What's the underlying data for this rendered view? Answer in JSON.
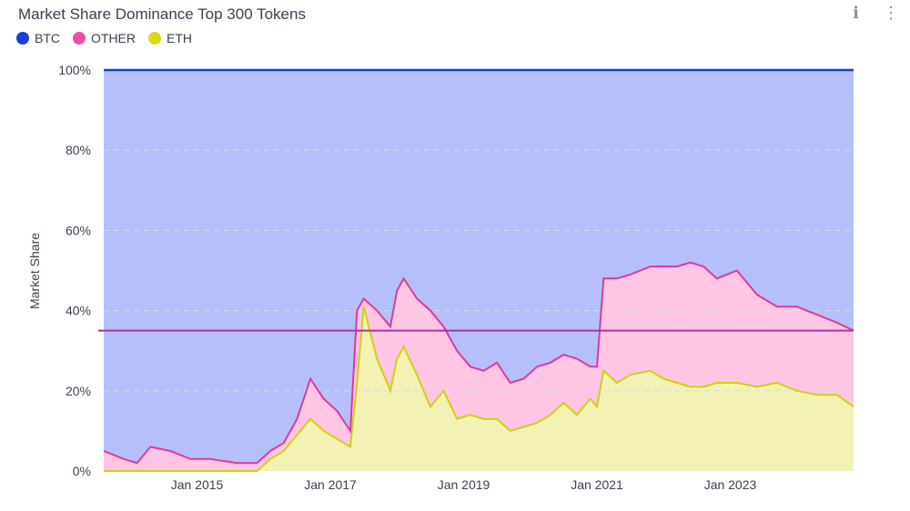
{
  "header": {
    "title": "Market Share Dominance Top 300 Tokens",
    "info_icon": "info-icon",
    "menu_icon": "vertical-dots-icon"
  },
  "legend": [
    {
      "label": "BTC",
      "color": "#1b3ed6"
    },
    {
      "label": "OTHER",
      "color": "#f04ea5"
    },
    {
      "label": "ETH",
      "color": "#d9d81a"
    }
  ],
  "colors": {
    "btc_area": "#b5c0fb",
    "btc_line": "#1b3ed6",
    "other_area": "#ffc5e2",
    "other_line": "#e0379d",
    "eth_area": "#f3f1b3",
    "eth_line": "#cfcf12",
    "ref_line": "#b0329b",
    "grid": "#d7dce8"
  },
  "chart_data": {
    "type": "area",
    "stacked": true,
    "title": "Market Share Dominance Top 300 Tokens",
    "ylabel": "Market Share",
    "xlabel": "",
    "ylim": [
      0,
      100
    ],
    "xlim": [
      2013.6,
      2024.85
    ],
    "yticks": [
      0,
      20,
      40,
      60,
      80,
      100
    ],
    "ytick_labels": [
      "0%",
      "20%",
      "40%",
      "60%",
      "80%",
      "100%"
    ],
    "xticks": [
      2015,
      2017,
      2019,
      2021,
      2023
    ],
    "xtick_labels": [
      "Jan 2015",
      "Jan 2017",
      "Jan 2019",
      "Jan 2021",
      "Jan 2023"
    ],
    "reference_line": 35,
    "grid": true,
    "legend_position": "top-left",
    "x": [
      2013.6,
      2013.9,
      2014.1,
      2014.3,
      2014.6,
      2014.9,
      2015.2,
      2015.6,
      2015.9,
      2016.1,
      2016.3,
      2016.5,
      2016.7,
      2016.9,
      2017.1,
      2017.3,
      2017.4,
      2017.5,
      2017.7,
      2017.9,
      2018.0,
      2018.1,
      2018.3,
      2018.5,
      2018.7,
      2018.9,
      2019.1,
      2019.3,
      2019.5,
      2019.7,
      2019.9,
      2020.1,
      2020.3,
      2020.5,
      2020.7,
      2020.9,
      2021.0,
      2021.1,
      2021.3,
      2021.5,
      2021.8,
      2022.0,
      2022.2,
      2022.4,
      2022.6,
      2022.8,
      2023.1,
      2023.4,
      2023.7,
      2024.0,
      2024.3,
      2024.6,
      2024.85
    ],
    "series": [
      {
        "name": "ETH",
        "values": [
          0,
          0,
          0,
          0,
          0,
          0,
          0,
          0,
          0,
          3,
          5,
          9,
          13,
          10,
          8,
          6,
          22,
          41,
          28,
          20,
          28,
          31,
          24,
          16,
          20,
          13,
          14,
          13,
          13,
          10,
          11,
          12,
          14,
          17,
          14,
          18,
          16,
          25,
          22,
          24,
          25,
          23,
          22,
          21,
          21,
          22,
          22,
          21,
          22,
          20,
          19,
          19,
          16
        ]
      },
      {
        "name": "OTHER",
        "values": [
          5,
          3,
          2,
          6,
          5,
          3,
          3,
          2,
          2,
          2,
          2,
          4,
          10,
          8,
          7,
          4,
          18,
          2,
          12,
          16,
          17,
          17,
          19,
          24,
          16,
          17,
          12,
          12,
          14,
          12,
          12,
          14,
          13,
          12,
          14,
          8,
          10,
          23,
          26,
          25,
          26,
          28,
          29,
          31,
          30,
          26,
          28,
          23,
          19,
          21,
          20,
          18,
          19
        ]
      },
      {
        "name": "BTC",
        "values": [
          95,
          97,
          98,
          94,
          95,
          97,
          97,
          98,
          98,
          95,
          93,
          87,
          77,
          82,
          85,
          90,
          60,
          57,
          60,
          64,
          55,
          52,
          57,
          60,
          64,
          70,
          74,
          75,
          73,
          78,
          77,
          74,
          73,
          71,
          72,
          74,
          74,
          52,
          52,
          51,
          49,
          49,
          49,
          48,
          49,
          52,
          50,
          56,
          59,
          59,
          61,
          63,
          65
        ]
      }
    ]
  }
}
